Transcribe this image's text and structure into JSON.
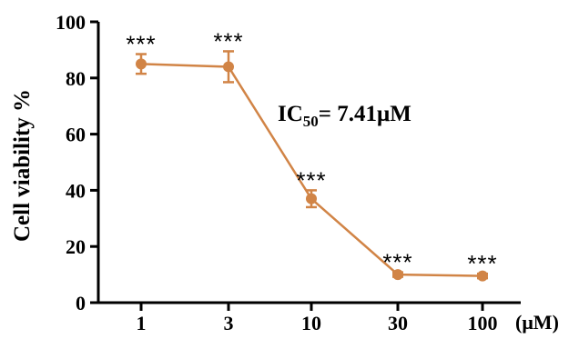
{
  "chart_data": {
    "type": "line",
    "ylabel": "Cell viability %",
    "x_unit": "(μM)",
    "categories": [
      "1",
      "3",
      "10",
      "30",
      "100"
    ],
    "x": [
      1,
      3,
      10,
      30,
      100
    ],
    "x_scale": "log",
    "ylim": [
      0,
      100
    ],
    "yticks": [
      "0",
      "20",
      "40",
      "60",
      "80",
      "100"
    ],
    "series": [
      {
        "values": [
          85,
          84,
          37,
          10,
          9.5
        ],
        "error": [
          3.5,
          5.5,
          3,
          0.8,
          0.8
        ],
        "color": "#d18446",
        "significance": [
          "***",
          "***",
          "***",
          "***",
          "***"
        ]
      }
    ],
    "annotation": {
      "main": "IC",
      "sub": "50",
      "rest": "= 7.41μM"
    },
    "grid": false,
    "legend": "none"
  }
}
